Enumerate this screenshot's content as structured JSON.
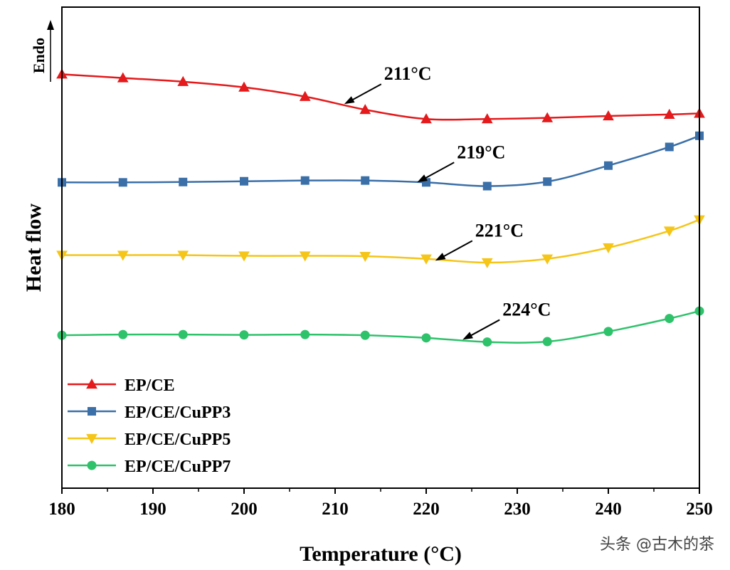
{
  "chart_data": {
    "type": "line",
    "title": "",
    "xlabel": "Temperature (°C)",
    "ylabel": "Heat flow",
    "y_direction_label": "Endo",
    "xlim": [
      180,
      250
    ],
    "x_ticks": [
      180,
      190,
      200,
      210,
      220,
      230,
      240,
      250
    ],
    "y_ticks": [],
    "grid": false,
    "legend_position": "bottom-left",
    "series": [
      {
        "name": "EP/CE",
        "color": "#e41a1c",
        "marker": "triangle-up",
        "x": [
          180,
          186.7,
          193.3,
          200,
          206.7,
          213.3,
          220,
          226.7,
          233.3,
          240,
          246.7,
          250
        ],
        "y": [
          9.0,
          8.9,
          8.8,
          8.65,
          8.4,
          8.05,
          7.8,
          7.8,
          7.83,
          7.88,
          7.92,
          7.95
        ]
      },
      {
        "name": "EP/CE/CuPP3",
        "color": "#3a6fa8",
        "marker": "square",
        "x": [
          180,
          186.7,
          193.3,
          200,
          206.7,
          213.3,
          220,
          226.7,
          233.3,
          240,
          246.7,
          250
        ],
        "y": [
          6.1,
          6.1,
          6.11,
          6.13,
          6.15,
          6.15,
          6.1,
          6.0,
          6.12,
          6.55,
          7.05,
          7.35
        ]
      },
      {
        "name": "EP/CE/CuPP5",
        "color": "#f5c518",
        "marker": "triangle-down",
        "x": [
          180,
          186.7,
          193.3,
          200,
          206.7,
          213.3,
          220,
          226.7,
          233.3,
          240,
          246.7,
          250
        ],
        "y": [
          4.15,
          4.15,
          4.15,
          4.13,
          4.13,
          4.12,
          4.05,
          3.95,
          4.05,
          4.35,
          4.8,
          5.1
        ]
      },
      {
        "name": "EP/CE/CuPP7",
        "color": "#2ec26b",
        "marker": "circle",
        "x": [
          180,
          186.7,
          193.3,
          200,
          206.7,
          213.3,
          220,
          226.7,
          233.3,
          240,
          246.7,
          250
        ],
        "y": [
          2.0,
          2.02,
          2.02,
          2.01,
          2.02,
          2.0,
          1.93,
          1.82,
          1.83,
          2.1,
          2.45,
          2.65
        ]
      }
    ],
    "annotations": [
      {
        "text": "211°C",
        "target_x": 211,
        "target_y": 8.2
      },
      {
        "text": "219°C",
        "target_x": 219,
        "target_y": 6.1
      },
      {
        "text": "221°C",
        "target_x": 221,
        "target_y": 4.0
      },
      {
        "text": "224°C",
        "target_x": 224,
        "target_y": 1.88
      }
    ],
    "ylim": [
      -2.1,
      10.8
    ]
  },
  "watermark": "头条 @古木的茶"
}
